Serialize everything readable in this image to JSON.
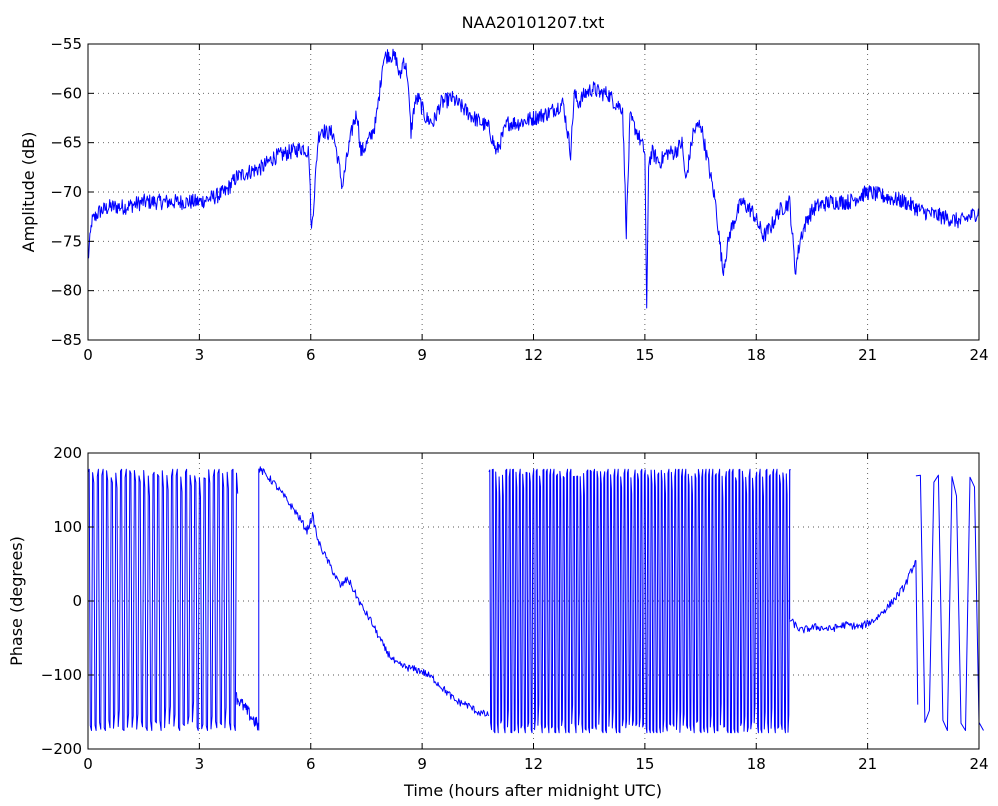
{
  "chart_data": [
    {
      "type": "line",
      "title": "NAA20101207.txt",
      "xlabel": "",
      "ylabel": "Amplitude (dB)",
      "xlim": [
        0,
        24
      ],
      "ylim": [
        -85,
        -55
      ],
      "xticks": [
        0,
        3,
        6,
        9,
        12,
        15,
        18,
        21,
        24
      ],
      "yticks": [
        -85,
        -80,
        -75,
        -70,
        -65,
        -60,
        -55
      ],
      "grid": true,
      "series": [
        {
          "color": "#0000ff",
          "x": [
            0,
            0.1,
            0.3,
            0.6,
            1,
            1.5,
            2,
            2.5,
            3,
            3.4,
            3.7,
            4,
            4.3,
            4.7,
            5,
            5.4,
            5.8,
            5.95,
            6.02,
            6.1,
            6.2,
            6.3,
            6.4,
            6.6,
            6.75,
            6.85,
            7,
            7.15,
            7.25,
            7.35,
            7.45,
            7.6,
            7.75,
            7.85,
            7.95,
            8.1,
            8.3,
            8.4,
            8.5,
            8.6,
            8.7,
            8.8,
            8.9,
            9.1,
            9.3,
            9.5,
            9.8,
            10.1,
            10.4,
            10.8,
            11,
            11.3,
            11.6,
            12,
            12.4,
            12.8,
            13,
            13.1,
            13.2,
            13.4,
            13.6,
            13.8,
            14,
            14.2,
            14.4,
            14.5,
            14.6,
            14.8,
            15.0,
            15.05,
            15.1,
            15.2,
            15.4,
            15.6,
            15.8,
            16,
            16.1,
            16.3,
            16.5,
            16.7,
            16.9,
            17.1,
            17.3,
            17.6,
            17.9,
            18.2,
            18.4,
            18.6,
            18.9,
            19.05,
            19.2,
            19.4,
            19.6,
            20,
            20.5,
            21,
            21.5,
            22,
            22.5,
            23,
            23.5,
            24
          ],
          "values": [
            -77,
            -73,
            -72,
            -71.5,
            -71.5,
            -71,
            -71,
            -71,
            -71,
            -70.5,
            -70,
            -68.5,
            -68,
            -67.5,
            -66.5,
            -66,
            -65.5,
            -66,
            -74,
            -70,
            -64.5,
            -63.5,
            -64,
            -64,
            -67,
            -69.5,
            -66,
            -63,
            -62,
            -66,
            -65.5,
            -64.5,
            -63,
            -60,
            -56.5,
            -56,
            -56.5,
            -58.5,
            -56.5,
            -58,
            -64,
            -61,
            -60.5,
            -62.5,
            -63,
            -61,
            -60.5,
            -61.5,
            -62.5,
            -63.5,
            -66,
            -63,
            -63,
            -62.5,
            -62,
            -61,
            -66,
            -60,
            -61,
            -60,
            -59.5,
            -60,
            -60,
            -61,
            -61.5,
            -74,
            -62.5,
            -64,
            -66,
            -82.5,
            -67,
            -66,
            -67,
            -66,
            -66,
            -65,
            -69,
            -64,
            -63,
            -67,
            -71,
            -78,
            -74,
            -71,
            -72,
            -74.5,
            -73.5,
            -72,
            -71,
            -78,
            -74.5,
            -72.5,
            -71.5,
            -71,
            -71,
            -70,
            -70.5,
            -71,
            -72,
            -72.5,
            -73,
            -72
          ]
        }
      ]
    },
    {
      "type": "line",
      "title": "",
      "xlabel": "Time (hours after midnight UTC)",
      "ylabel": "Phase (degrees)",
      "xlim": [
        0,
        24
      ],
      "ylim": [
        -200,
        200
      ],
      "xticks": [
        0,
        3,
        6,
        9,
        12,
        15,
        18,
        21,
        24
      ],
      "yticks": [
        -200,
        -100,
        0,
        100,
        200
      ],
      "grid": true,
      "series": [
        {
          "color": "#0000ff",
          "x": [
            4.6,
            4.7,
            5.0,
            5.3,
            5.6,
            5.9,
            6.05,
            6.2,
            6.5,
            6.8,
            7.0,
            7.2,
            7.4,
            7.6,
            7.8,
            8.0,
            8.3,
            8.6,
            9.0,
            9.3,
            9.6,
            9.9,
            10.2,
            10.5,
            10.8
          ],
          "values": [
            178,
            175,
            160,
            140,
            120,
            95,
            115,
            80,
            50,
            20,
            30,
            10,
            -10,
            -25,
            -45,
            -65,
            -85,
            -90,
            -95,
            -105,
            -120,
            -135,
            -140,
            -150,
            -155
          ]
        },
        {
          "color": "#0000ff",
          "x": [
            18.9,
            19.2,
            19.6,
            20.0,
            20.4,
            20.8,
            21.2,
            21.6,
            22.0,
            22.3
          ],
          "values": [
            -25,
            -40,
            -35,
            -38,
            -32,
            -35,
            -25,
            -5,
            20,
            55
          ]
        }
      ],
      "wrapped_segments": [
        {
          "start": 0,
          "end": 4.0,
          "min": -175,
          "max": 178,
          "flips_per_hour": 16
        },
        {
          "start": 4.0,
          "end": 4.6,
          "min": -180,
          "max": -130,
          "flips_per_hour": 0
        },
        {
          "start": 10.8,
          "end": 18.9,
          "min": -178,
          "max": 178,
          "flips_per_hour": 22
        },
        {
          "start": 22.3,
          "end": 24.0,
          "min": -175,
          "max": 170,
          "flips_per_hour": 4
        }
      ]
    }
  ]
}
